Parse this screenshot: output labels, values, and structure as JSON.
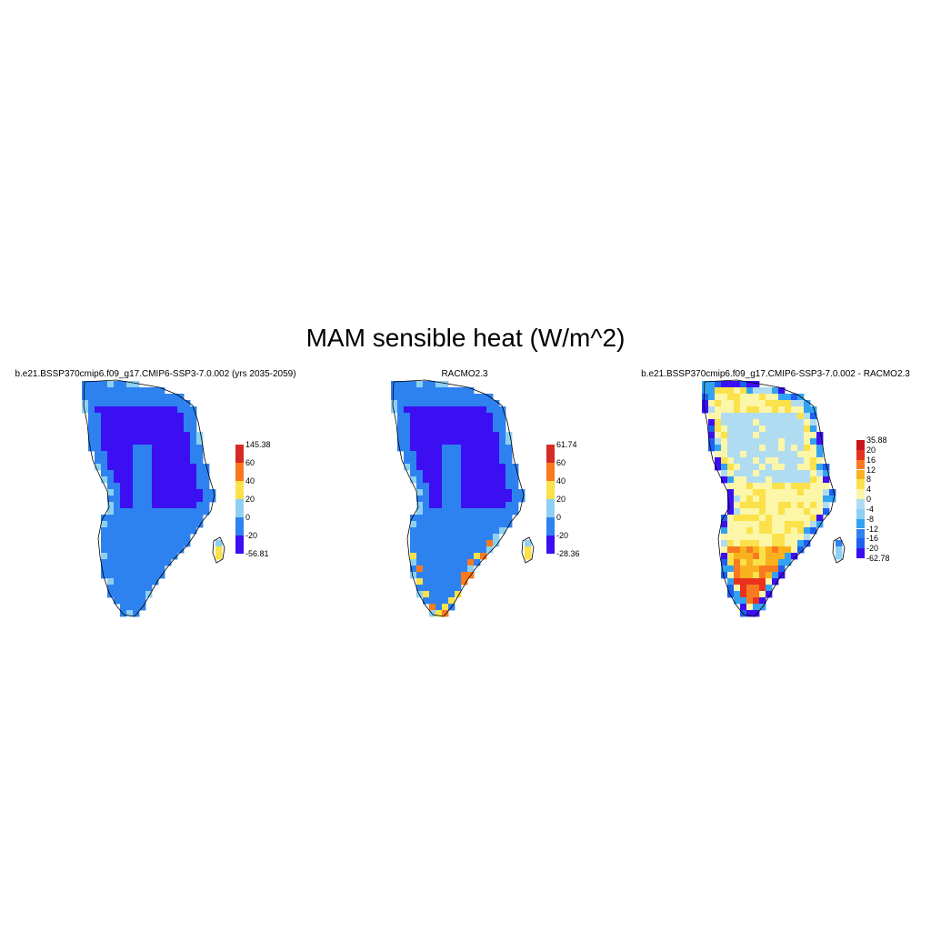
{
  "title": "MAM sensible heat (W/m^2)",
  "panels": [
    {
      "title": "b.e21.BSSP370cmip6.f09_g17.CMIP6-SSP3-7.0.002 (yrs 2035-2059)",
      "scheme": "model",
      "colorbar": {
        "colors": [
          "#3c0ff2",
          "#2e82f0",
          "#8ed0f2",
          "#fbe14a",
          "#f97a1e",
          "#d62a26"
        ],
        "labels": [
          "145.38",
          "60",
          "40",
          "20",
          "0",
          "-20",
          "-56.81"
        ]
      }
    },
    {
      "title": "RACMO2.3",
      "scheme": "racmo",
      "colorbar": {
        "colors": [
          "#3c0ff2",
          "#2e82f0",
          "#8ed0f2",
          "#fbe14a",
          "#f97a1e",
          "#d62a26"
        ],
        "labels": [
          "61.74",
          "60",
          "40",
          "20",
          "0",
          "-20",
          "-28.36"
        ]
      }
    },
    {
      "title": "b.e21.BSSP370cmip6.f09_g17.CMIP6-SSP3-7.0.002 - RACMO2.3",
      "scheme": "diff",
      "colorbar": {
        "colors": [
          "#3c0ff2",
          "#1e5ff0",
          "#2e82f0",
          "#33a2f2",
          "#8ed0f2",
          "#b0dcf2",
          "#fbf6a8",
          "#fbe14a",
          "#f9b21e",
          "#f97a1e",
          "#e8321e",
          "#c9141e"
        ],
        "labels": [
          "35.88",
          "20",
          "16",
          "12",
          "8",
          "4",
          "0",
          "-4",
          "-8",
          "-12",
          "-16",
          "-20",
          "-62.78"
        ]
      }
    }
  ]
}
